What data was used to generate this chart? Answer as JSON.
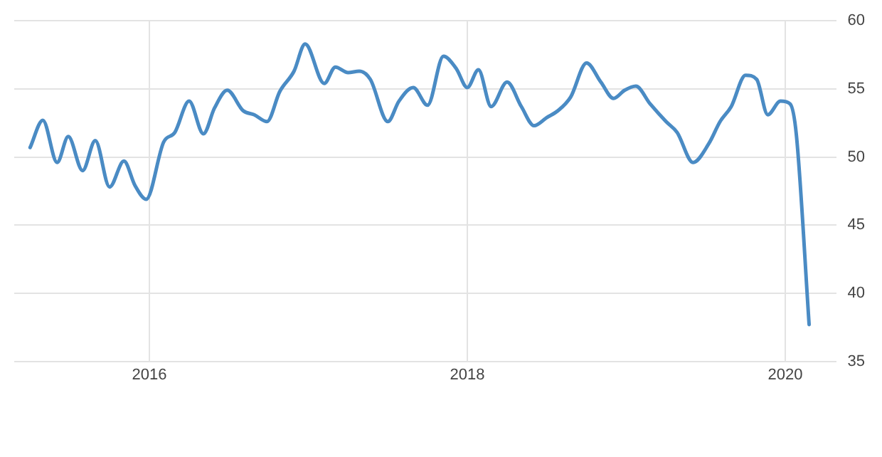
{
  "chart_data": {
    "type": "line",
    "x": [
      2015.25,
      2015.33,
      2015.42,
      2015.49,
      2015.58,
      2015.66,
      2015.75,
      2015.84,
      2015.91,
      2015.98,
      2016.09,
      2016.16,
      2016.25,
      2016.34,
      2016.41,
      2016.49,
      2016.59,
      2016.66,
      2016.74,
      2016.82,
      2016.91,
      2016.98,
      2017.1,
      2017.17,
      2017.25,
      2017.32,
      2017.39,
      2017.5,
      2017.57,
      2017.66,
      2017.75,
      2017.85,
      2017.93,
      2018.0,
      2018.07,
      2018.15,
      2018.25,
      2018.34,
      2018.42,
      2018.5,
      2018.57,
      2018.65,
      2018.75,
      2018.84,
      2018.92,
      2018.99,
      2019.06,
      2019.15,
      2019.25,
      2019.32,
      2019.42,
      2019.52,
      2019.59,
      2019.66,
      2019.75,
      2019.82,
      2019.89,
      2019.97,
      2020.03,
      2020.07,
      2020.15
    ],
    "series": [
      {
        "color": "#4a8bc4",
        "values": [
          50.7,
          52.7,
          49.6,
          51.5,
          49.0,
          51.2,
          47.8,
          49.7,
          47.9,
          46.9,
          51.1,
          51.8,
          54.1,
          51.7,
          53.6,
          54.9,
          53.4,
          53.1,
          52.6,
          54.8,
          56.3,
          58.3,
          55.4,
          56.6,
          56.2,
          56.3,
          55.7,
          52.6,
          54.1,
          55.1,
          53.8,
          57.4,
          56.5,
          55.1,
          56.4,
          53.7,
          55.5,
          53.7,
          52.3,
          52.9,
          53.4,
          54.4,
          56.9,
          55.5,
          54.3,
          54.9,
          55.2,
          53.9,
          52.6,
          51.8,
          49.6,
          51.0,
          52.6,
          53.7,
          56.0,
          55.7,
          53.1,
          54.1,
          53.9,
          51.6,
          37.7
        ]
      }
    ],
    "xlim": [
      2015.15,
      2020.32
    ],
    "xticks": [
      2016,
      2018,
      2020
    ],
    "ylim": [
      35,
      60
    ],
    "yticks": [
      35,
      40,
      45,
      50,
      55,
      60
    ],
    "grid": true,
    "marker": "none",
    "line_style": "solid",
    "legend": false
  }
}
